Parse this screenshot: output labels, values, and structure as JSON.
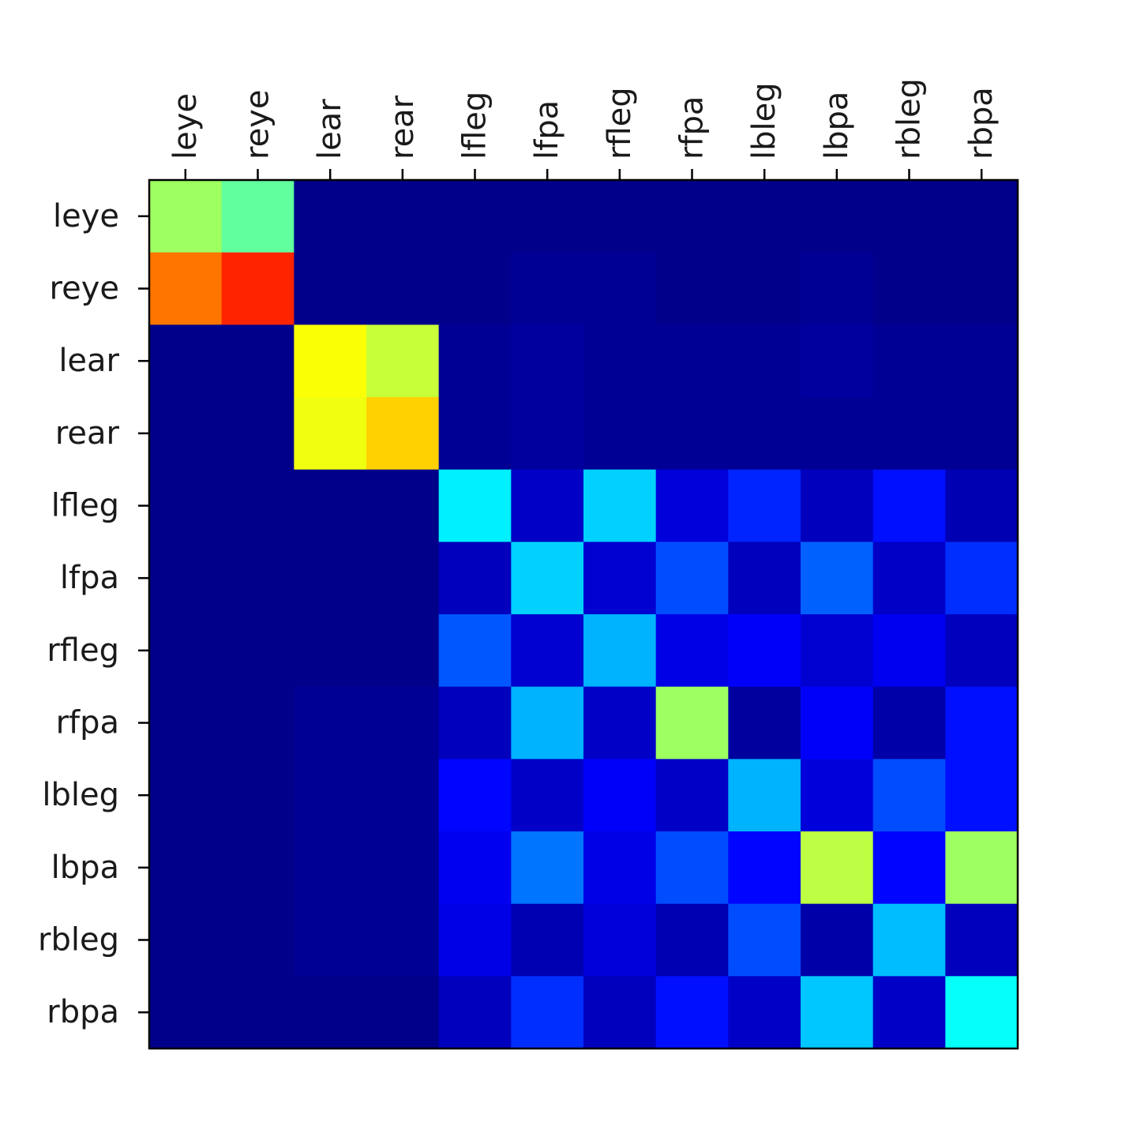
{
  "chart_data": {
    "type": "heatmap",
    "title": "",
    "xlabel": "",
    "ylabel": "",
    "x_tick_position": "top",
    "legend": "none",
    "grid": false,
    "colormap": "jet",
    "value_range": [
      0,
      1
    ],
    "x_categories": [
      "leye",
      "reye",
      "lear",
      "rear",
      "lfleg",
      "lfpa",
      "rfleg",
      "rfpa",
      "lbleg",
      "lbpa",
      "rbleg",
      "rbpa"
    ],
    "y_categories": [
      "leye",
      "reye",
      "lear",
      "rear",
      "lfleg",
      "lfpa",
      "rfleg",
      "rfpa",
      "lbleg",
      "lbpa",
      "rbleg",
      "rbpa"
    ],
    "values": [
      [
        0.53,
        0.47,
        0.01,
        0.01,
        0.01,
        0.01,
        0.01,
        0.01,
        0.01,
        0.01,
        0.01,
        0.01
      ],
      [
        0.76,
        0.84,
        0.01,
        0.01,
        0.01,
        0.02,
        0.02,
        0.01,
        0.01,
        0.02,
        0.01,
        0.01
      ],
      [
        0.01,
        0.01,
        0.62,
        0.57,
        0.02,
        0.03,
        0.02,
        0.02,
        0.02,
        0.03,
        0.02,
        0.02
      ],
      [
        0.01,
        0.01,
        0.61,
        0.67,
        0.02,
        0.03,
        0.02,
        0.02,
        0.02,
        0.02,
        0.02,
        0.02
      ],
      [
        0.01,
        0.01,
        0.01,
        0.01,
        0.36,
        0.07,
        0.33,
        0.09,
        0.16,
        0.06,
        0.14,
        0.05
      ],
      [
        0.01,
        0.01,
        0.01,
        0.01,
        0.06,
        0.33,
        0.08,
        0.2,
        0.06,
        0.22,
        0.07,
        0.17
      ],
      [
        0.01,
        0.01,
        0.01,
        0.01,
        0.21,
        0.08,
        0.3,
        0.1,
        0.12,
        0.08,
        0.11,
        0.06
      ],
      [
        0.01,
        0.01,
        0.02,
        0.02,
        0.06,
        0.3,
        0.07,
        0.53,
        0.03,
        0.12,
        0.04,
        0.14
      ],
      [
        0.01,
        0.01,
        0.02,
        0.02,
        0.13,
        0.07,
        0.12,
        0.07,
        0.3,
        0.09,
        0.2,
        0.14
      ],
      [
        0.01,
        0.01,
        0.02,
        0.02,
        0.11,
        0.24,
        0.1,
        0.2,
        0.13,
        0.56,
        0.13,
        0.53
      ],
      [
        0.01,
        0.01,
        0.02,
        0.02,
        0.1,
        0.05,
        0.09,
        0.05,
        0.2,
        0.04,
        0.31,
        0.06
      ],
      [
        0.01,
        0.01,
        0.01,
        0.01,
        0.06,
        0.17,
        0.06,
        0.14,
        0.07,
        0.32,
        0.07,
        0.38
      ]
    ]
  }
}
